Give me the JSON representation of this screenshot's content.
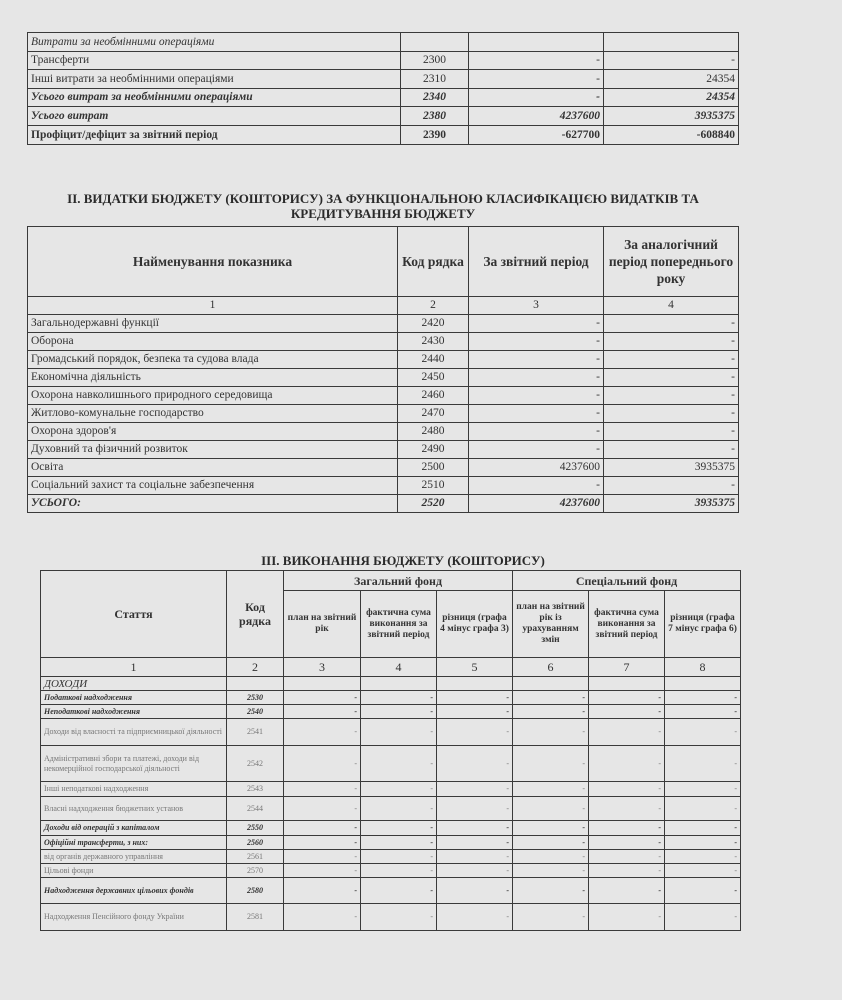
{
  "table1": {
    "rows": [
      {
        "name": "Витрати за необмінними операціями",
        "code": "",
        "current": "",
        "previous": "",
        "style": "i"
      },
      {
        "name": "Трансферти",
        "code": "2300",
        "current": "-",
        "previous": "-",
        "style": ""
      },
      {
        "name": "Інші витрати за необмінними операціями",
        "code": "2310",
        "current": "-",
        "previous": "24354",
        "style": ""
      },
      {
        "name": "Усього витрат за необмінними операціями",
        "code": "2340",
        "current": "-",
        "previous": "24354",
        "style": "bi"
      },
      {
        "name": "Усього витрат",
        "code": "2380",
        "current": "4237600",
        "previous": "3935375",
        "style": "bi"
      },
      {
        "name": "Профіцит/дефіцит за звітний період",
        "code": "2390",
        "current": "-627700",
        "previous": "-608840",
        "style": "b"
      }
    ]
  },
  "section2": {
    "title_line1": "ІІ. ВИДАТКИ БЮДЖЕТУ (КОШТОРИСУ) ЗА ФУНКЦІОНАЛЬНОЮ КЛАСИФІКАЦІЄЮ ВИДАТКІВ ТА",
    "title_line2": "КРЕДИТУВАННЯ БЮДЖЕТУ",
    "headers": [
      "Найменування показника",
      "Код рядка",
      "За звітний період",
      "За аналогічний період попереднього року"
    ],
    "col_numbers": [
      "1",
      "2",
      "3",
      "4"
    ],
    "rows": [
      {
        "name": "Загальнодержавні функції",
        "code": "2420",
        "current": "-",
        "previous": "-",
        "style": ""
      },
      {
        "name": "Оборона",
        "code": "2430",
        "current": "-",
        "previous": "-",
        "style": ""
      },
      {
        "name": "Громадський порядок, безпека та судова влада",
        "code": "2440",
        "current": "-",
        "previous": "-",
        "style": ""
      },
      {
        "name": "Економічна діяльність",
        "code": "2450",
        "current": "-",
        "previous": "-",
        "style": ""
      },
      {
        "name": "Охорона навколишнього природного середовища",
        "code": "2460",
        "current": "-",
        "previous": "-",
        "style": ""
      },
      {
        "name": "Житлово-комунальне господарство",
        "code": "2470",
        "current": "-",
        "previous": "-",
        "style": ""
      },
      {
        "name": "Охорона здоров'я",
        "code": "2480",
        "current": "-",
        "previous": "-",
        "style": ""
      },
      {
        "name": "Духовний та фізичний розвиток",
        "code": "2490",
        "current": "-",
        "previous": "-",
        "style": ""
      },
      {
        "name": "Освіта",
        "code": "2500",
        "current": "4237600",
        "previous": "3935375",
        "style": ""
      },
      {
        "name": "Соціальний захист та соціальне забезпечення",
        "code": "2510",
        "current": "-",
        "previous": "-",
        "style": ""
      },
      {
        "name": "УСЬОГО:",
        "code": "2520",
        "current": "4237600",
        "previous": "3935375",
        "style": "bi"
      }
    ]
  },
  "section3": {
    "title": "ІІІ. ВИКОНАННЯ БЮДЖЕТУ (КОШТОРИСУ)",
    "h_article": "Стаття",
    "h_code": "Код рядка",
    "h_general": "Загальний фонд",
    "h_special": "Спеціальний фонд",
    "sub": [
      "план на звітний рік",
      "фактична сума виконання за звітний період",
      "різниця (графа 4 мінус графа 3)",
      "план на звітний рік із урахуванням змін",
      "фактична сума виконання за звітний період",
      "різниця (графа 7 мінус графа 6)"
    ],
    "col_numbers": [
      "1",
      "2",
      "3",
      "4",
      "5",
      "6",
      "7",
      "8"
    ],
    "rows": [
      {
        "name": "ДОХОДИ",
        "code": "",
        "values": [
          "",
          "",
          "",
          "",
          "",
          ""
        ],
        "style": "i"
      },
      {
        "name": "Податкові надходження",
        "code": "2530",
        "values": [
          "-",
          "-",
          "-",
          "-",
          "-",
          "-"
        ],
        "style": "bi"
      },
      {
        "name": "Неподаткові надходження",
        "code": "2540",
        "values": [
          "-",
          "-",
          "-",
          "-",
          "-",
          "-"
        ],
        "style": "bi"
      },
      {
        "name": "Доходи від власності та підприємницької діяльності",
        "code": "2541",
        "values": [
          "-",
          "-",
          "-",
          "-",
          "-",
          "-"
        ],
        "style": "light"
      },
      {
        "name": "Адміністративні збори та платежі, доходи від некомерційної господарської діяльності",
        "code": "2542",
        "values": [
          "-",
          "-",
          "-",
          "-",
          "-",
          "-"
        ],
        "style": "light"
      },
      {
        "name": "Інші неподаткові надходження",
        "code": "2543",
        "values": [
          "-",
          "-",
          "-",
          "-",
          "-",
          "-"
        ],
        "style": "light"
      },
      {
        "name": "Власні надходження бюджетних установ",
        "code": "2544",
        "values": [
          "-",
          "-",
          "-",
          "-",
          "-",
          "-"
        ],
        "style": "light"
      },
      {
        "name": "Доходи від операцій з капіталом",
        "code": "2550",
        "values": [
          "-",
          "-",
          "-",
          "-",
          "-",
          "-"
        ],
        "style": "bi"
      },
      {
        "name": "Офіційні трансферти, з них:",
        "code": "2560",
        "values": [
          "-",
          "-",
          "-",
          "-",
          "-",
          "-"
        ],
        "style": "bi"
      },
      {
        "name": "від органів державного управління",
        "code": "2561",
        "values": [
          "-",
          "-",
          "-",
          "-",
          "-",
          "-"
        ],
        "style": "light"
      },
      {
        "name": "Цільові фонди",
        "code": "2570",
        "values": [
          "-",
          "-",
          "-",
          "-",
          "-",
          "-"
        ],
        "style": "light"
      },
      {
        "name": "Надходження державних цільових фондів",
        "code": "2580",
        "values": [
          "-",
          "-",
          "-",
          "-",
          "-",
          "-"
        ],
        "style": "bi"
      },
      {
        "name": "Надходження Пенсійного фонду України",
        "code": "2581",
        "values": [
          "-",
          "-",
          "-",
          "-",
          "-",
          "-"
        ],
        "style": "light"
      }
    ]
  }
}
